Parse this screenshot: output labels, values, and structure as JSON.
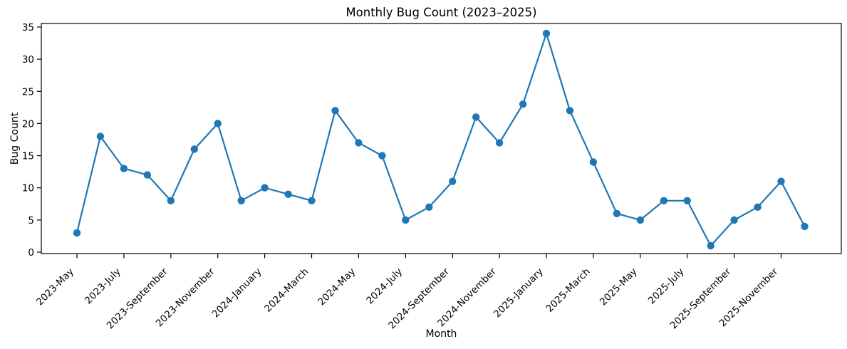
{
  "figure": {
    "background": "#ffffff",
    "text_color": "#000000",
    "spine_color": "#000000"
  },
  "chart_data": {
    "type": "line",
    "title": "Monthly Bug Count (2023–2025)",
    "xlabel": "Month",
    "ylabel": "Bug Count",
    "series_color": "#1f77b4",
    "marker": "circle",
    "grid": false,
    "legend": "none",
    "ylim": [
      0,
      35
    ],
    "yticks": [
      0,
      5,
      10,
      15,
      20,
      25,
      30,
      35
    ],
    "xtick_every": 2,
    "xtick_labels": [
      "2023-May",
      "2023-July",
      "2023-September",
      "2023-November",
      "2024-January",
      "2024-March",
      "2024-May",
      "2024-July",
      "2024-September",
      "2024-November",
      "2025-January",
      "2025-March",
      "2025-May",
      "2025-July",
      "2025-September",
      "2025-November"
    ],
    "categories": [
      "2023-May",
      "2023-June",
      "2023-July",
      "2023-August",
      "2023-September",
      "2023-October",
      "2023-November",
      "2023-December",
      "2024-January",
      "2024-February",
      "2024-March",
      "2024-April",
      "2024-May",
      "2024-June",
      "2024-July",
      "2024-August",
      "2024-September",
      "2024-October",
      "2024-November",
      "2024-December",
      "2025-January",
      "2025-February",
      "2025-March",
      "2025-April",
      "2025-May",
      "2025-June",
      "2025-July",
      "2025-August",
      "2025-September",
      "2025-October",
      "2025-November",
      "2025-December"
    ],
    "values": [
      3,
      18,
      13,
      12,
      8,
      16,
      20,
      8,
      10,
      9,
      8,
      22,
      17,
      15,
      5,
      7,
      11,
      21,
      17,
      23,
      34,
      22,
      14,
      6,
      5,
      8,
      8,
      1,
      5,
      7,
      11,
      4
    ]
  }
}
